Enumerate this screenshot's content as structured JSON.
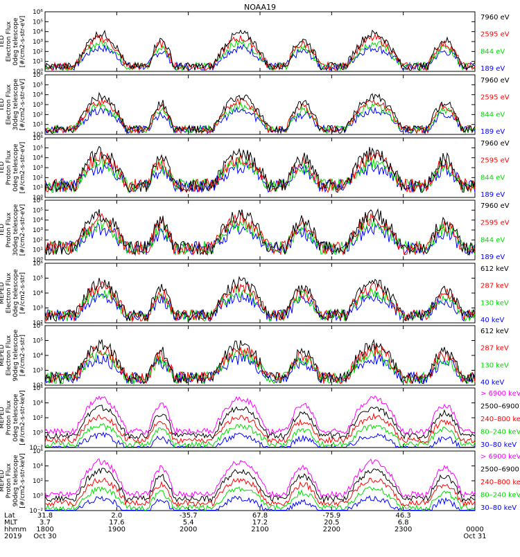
{
  "title": "NOAA19",
  "colors": {
    "black": "#000000",
    "red": "#ff0000",
    "green": "#00dd00",
    "blue": "#0000ff",
    "magenta": "#ff00ff"
  },
  "chart_data": [
    {
      "type": "line",
      "instrument": "TED",
      "ylabel": [
        "TED",
        "Electron Flux",
        "0deg telescope",
        "[#/cm2-s-str-eV]"
      ],
      "yticks": [
        "10⁰",
        "10¹",
        "10²",
        "10³",
        "10⁴",
        "10⁵",
        "10⁶"
      ],
      "ylim_exp": [
        0,
        6
      ],
      "series": [
        {
          "name": "7960 eV",
          "color": "black"
        },
        {
          "name": "2595 eV",
          "color": "red"
        },
        {
          "name": "844 eV",
          "color": "green"
        },
        {
          "name": "189 eV",
          "color": "blue"
        }
      ]
    },
    {
      "type": "line",
      "instrument": "TED",
      "ylabel": [
        "TED",
        "Electron Flux",
        "30deg telescope",
        "[#/cm2-s-str-eV]"
      ],
      "yticks": [
        "10⁰",
        "10¹",
        "10²",
        "10³",
        "10⁴",
        "10⁵",
        "10⁶"
      ],
      "ylim_exp": [
        0,
        6
      ],
      "series": [
        {
          "name": "7960 eV",
          "color": "black"
        },
        {
          "name": "2595 eV",
          "color": "red"
        },
        {
          "name": "844 eV",
          "color": "green"
        },
        {
          "name": "189 eV",
          "color": "blue"
        }
      ]
    },
    {
      "type": "line",
      "instrument": "TED",
      "ylabel": [
        "TED",
        "Proton Flux",
        "0deg telescope",
        "[#/cm2-s-str-eV]"
      ],
      "yticks": [
        "10⁰",
        "10¹",
        "10²",
        "10³",
        "10⁴",
        "10⁵",
        "10⁶"
      ],
      "ylim_exp": [
        0,
        6
      ],
      "series": [
        {
          "name": "7960 eV",
          "color": "black"
        },
        {
          "name": "2595 eV",
          "color": "red"
        },
        {
          "name": "844 eV",
          "color": "green"
        },
        {
          "name": "189 eV",
          "color": "blue"
        }
      ]
    },
    {
      "type": "line",
      "instrument": "TED",
      "ylabel": [
        "TED",
        "Proton Flux",
        "30deg telescope",
        "[#/cm2-s-str-eV]"
      ],
      "yticks": [
        "10⁰",
        "10¹",
        "10²",
        "10³",
        "10⁴",
        "10⁵",
        "10⁶"
      ],
      "ylim_exp": [
        0,
        6
      ],
      "series": [
        {
          "name": "7960 eV",
          "color": "black"
        },
        {
          "name": "2595 eV",
          "color": "red"
        },
        {
          "name": "844 eV",
          "color": "green"
        },
        {
          "name": "189 eV",
          "color": "blue"
        }
      ]
    },
    {
      "type": "line",
      "instrument": "MEPED",
      "ylabel": [
        "MEPED",
        "Electron Flux",
        "0deg telescope",
        "[#/cm2-s-str]"
      ],
      "yticks": [
        "10²",
        "10³",
        "10⁴",
        "10⁵",
        "10⁶"
      ],
      "ylim_exp": [
        2,
        6
      ],
      "series": [
        {
          "name": "612 keV",
          "color": "black"
        },
        {
          "name": "287 keV",
          "color": "red"
        },
        {
          "name": "130 keV",
          "color": "green"
        },
        {
          "name": "40 keV",
          "color": "blue"
        }
      ]
    },
    {
      "type": "line",
      "instrument": "MEPED",
      "ylabel": [
        "MEPED",
        "Electron Flux",
        "90deg telescope",
        "[#/cm2-s-str]"
      ],
      "yticks": [
        "10²",
        "10³",
        "10⁴",
        "10⁵",
        "10⁶"
      ],
      "ylim_exp": [
        2,
        6
      ],
      "series": [
        {
          "name": "612 keV",
          "color": "black"
        },
        {
          "name": "287 keV",
          "color": "red"
        },
        {
          "name": "130 keV",
          "color": "green"
        },
        {
          "name": "40 keV",
          "color": "blue"
        }
      ]
    },
    {
      "type": "line",
      "instrument": "MEPED",
      "ylabel": [
        "MEPED",
        "Proton Flux",
        "0deg telescope",
        "[#/cm2-s-str-keV]"
      ],
      "yticks": [
        "10⁻²",
        "10⁰",
        "10²",
        "10⁴",
        "10⁶"
      ],
      "ylim_exp": [
        -2,
        6
      ],
      "series": [
        {
          "name": "> 6900 keV",
          "color": "magenta"
        },
        {
          "name": "2500–6900",
          "color": "black"
        },
        {
          "name": "240–800 keV",
          "color": "red"
        },
        {
          "name": "80–240 keV",
          "color": "green"
        },
        {
          "name": "30–80 keV",
          "color": "blue"
        }
      ]
    },
    {
      "type": "line",
      "instrument": "MEPED",
      "ylabel": [
        "MEPED",
        "Proton Flux",
        "90deg telescope",
        "[#/cm2-s-str-keV]"
      ],
      "yticks": [
        "10⁻²",
        "10⁰",
        "10²",
        "10⁴",
        "10⁶"
      ],
      "ylim_exp": [
        -2,
        6
      ],
      "series": [
        {
          "name": "> 6900 keV",
          "color": "magenta"
        },
        {
          "name": "2500–6900",
          "color": "black"
        },
        {
          "name": "240–800 keV",
          "color": "red"
        },
        {
          "name": "80–240 keV",
          "color": "green"
        },
        {
          "name": "30–80 keV",
          "color": "blue"
        }
      ]
    }
  ],
  "xaxis": {
    "row_labels": [
      "Lat",
      "MLT",
      "hhmm",
      "2019"
    ],
    "columns": [
      {
        "lat": "31.8",
        "mlt": "3.7",
        "hhmm": "1800",
        "date": "Oct 30"
      },
      {
        "lat": "2.0",
        "mlt": "17.6",
        "hhmm": "1900",
        "date": ""
      },
      {
        "lat": "-35.7",
        "mlt": "5.4",
        "hhmm": "2000",
        "date": ""
      },
      {
        "lat": "67.8",
        "mlt": "17.2",
        "hhmm": "2100",
        "date": ""
      },
      {
        "lat": "-75.9",
        "mlt": "20.5",
        "hhmm": "2200",
        "date": ""
      },
      {
        "lat": "46.3",
        "mlt": "6.8",
        "hhmm": "2300",
        "date": ""
      },
      {
        "lat": "",
        "mlt": "",
        "hhmm": "0000",
        "date": "Oct 31"
      }
    ]
  }
}
